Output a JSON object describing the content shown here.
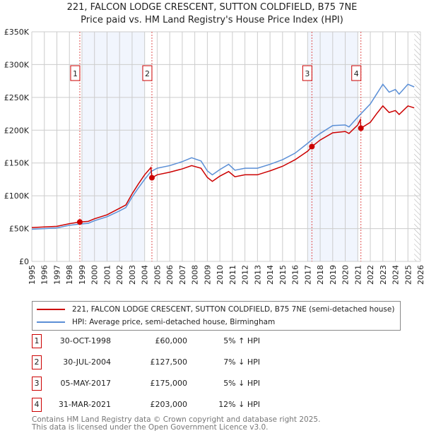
{
  "chart_data": {
    "type": "line",
    "title": "221, FALCON LODGE CRESCENT, SUTTON COLDFIELD, B75 7NE",
    "subtitle": "Price paid vs. HM Land Registry's House Price Index (HPI)",
    "xlim": [
      1995,
      2026
    ],
    "ylim": [
      0,
      350000
    ],
    "yticks": [
      {
        "v": 0,
        "label": "£0"
      },
      {
        "v": 50000,
        "label": "£50K"
      },
      {
        "v": 100000,
        "label": "£100K"
      },
      {
        "v": 150000,
        "label": "£150K"
      },
      {
        "v": 200000,
        "label": "£200K"
      },
      {
        "v": 250000,
        "label": "£250K"
      },
      {
        "v": 300000,
        "label": "£300K"
      },
      {
        "v": 350000,
        "label": "£350K"
      }
    ],
    "xticks": [
      "1995",
      "1996",
      "1997",
      "1998",
      "1999",
      "2000",
      "2001",
      "2002",
      "2003",
      "2004",
      "2005",
      "2006",
      "2007",
      "2008",
      "2009",
      "2010",
      "2011",
      "2012",
      "2013",
      "2014",
      "2015",
      "2016",
      "2017",
      "2018",
      "2019",
      "2020",
      "2021",
      "2022",
      "2023",
      "2024",
      "2025",
      "2026"
    ],
    "shaded": [
      [
        1999,
        2004
      ],
      [
        2017,
        2021
      ]
    ],
    "hatched_from": 2025.5,
    "series": [
      {
        "name": "221, FALCON LODGE CRESCENT, SUTTON COLDFIELD, B75 7NE (semi-detached house)",
        "color": "#cc0000",
        "x": [
          1995,
          1996,
          1997,
          1998,
          1998.83,
          1999.5,
          2000,
          2001,
          2002,
          2002.5,
          2003,
          2003.5,
          2004,
          2004.5,
          2004.58,
          2005,
          2006,
          2007,
          2007.75,
          2008.5,
          2009,
          2009.4,
          2010,
          2010.7,
          2011.2,
          2012,
          2013,
          2014,
          2015,
          2016,
          2017,
          2017.34,
          2018,
          2019,
          2020,
          2020.3,
          2021,
          2021.2,
          2021.25,
          2022,
          2022.5,
          2023,
          2023.5,
          2024,
          2024.3,
          2025,
          2025.5
        ],
        "y": [
          51500,
          52500,
          53500,
          57500,
          60000,
          61000,
          65000,
          71000,
          81000,
          86000,
          103000,
          118000,
          132000,
          143000,
          127500,
          132000,
          136000,
          141000,
          146000,
          142000,
          128000,
          122000,
          130000,
          137000,
          129000,
          132000,
          132000,
          138000,
          145000,
          155000,
          168000,
          175000,
          185000,
          196000,
          198000,
          195000,
          208000,
          216000,
          203000,
          212000,
          225000,
          237000,
          227000,
          230000,
          224000,
          237000,
          234000
        ]
      },
      {
        "name": "HPI: Average price, semi-detached house, Birmingham",
        "color": "#5b8fd6",
        "x": [
          1995,
          1996,
          1997,
          1998,
          1998.83,
          1999.5,
          2000,
          2001,
          2002,
          2002.5,
          2003,
          2003.5,
          2004,
          2004.5,
          2005,
          2006,
          2007,
          2007.75,
          2008.5,
          2009,
          2009.4,
          2010,
          2010.7,
          2011.2,
          2012,
          2013,
          2014,
          2015,
          2016,
          2017,
          2017.5,
          2018,
          2019,
          2020,
          2020.3,
          2021,
          2021.5,
          2022,
          2022.5,
          2023,
          2023.5,
          2024,
          2024.3,
          2025,
          2025.5
        ],
        "y": [
          49000,
          50000,
          51000,
          55000,
          57000,
          58000,
          62000,
          68000,
          77000,
          82000,
          98000,
          112000,
          125000,
          137000,
          142000,
          146000,
          152000,
          158000,
          153000,
          138000,
          132000,
          140000,
          148000,
          139000,
          142000,
          142000,
          148000,
          155000,
          165000,
          180000,
          188000,
          195000,
          207000,
          208000,
          205000,
          220000,
          230000,
          240000,
          255000,
          270000,
          258000,
          262000,
          255000,
          270000,
          266000
        ]
      }
    ],
    "sales": [
      {
        "n": "1",
        "x": 1998.83,
        "y": 60000,
        "date": "30-OCT-1998",
        "price": "£60,000",
        "hpi": "5% ↑ HPI"
      },
      {
        "n": "2",
        "x": 2004.58,
        "y": 127500,
        "date": "30-JUL-2004",
        "price": "£127,500",
        "hpi": "7% ↓ HPI"
      },
      {
        "n": "3",
        "x": 2017.34,
        "y": 175000,
        "date": "05-MAY-2017",
        "price": "£175,000",
        "hpi": "5% ↓ HPI"
      },
      {
        "n": "4",
        "x": 2021.25,
        "y": 203000,
        "date": "31-MAR-2021",
        "price": "£203,000",
        "hpi": "12% ↓ HPI"
      }
    ]
  },
  "footer": [
    "Contains HM Land Registry data © Crown copyright and database right 2025.",
    "This data is licensed under the Open Government Licence v3.0."
  ]
}
